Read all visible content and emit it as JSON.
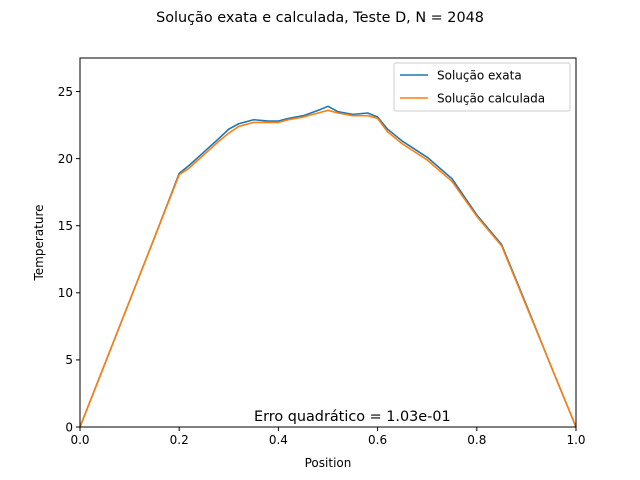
{
  "chart_data": {
    "type": "line",
    "title": "Solução exata e calculada, Teste D, N = 2048",
    "xlabel": "Position",
    "ylabel": "Temperature",
    "xlim": [
      0.0,
      1.0
    ],
    "ylim": [
      0,
      27.5
    ],
    "xticks": [
      0.0,
      0.2,
      0.4,
      0.6,
      0.8,
      1.0
    ],
    "xtick_labels": [
      "0.0",
      "0.2",
      "0.4",
      "0.6",
      "0.8",
      "1.0"
    ],
    "yticks": [
      0,
      5,
      10,
      15,
      20,
      25
    ],
    "ytick_labels": [
      "0",
      "5",
      "10",
      "15",
      "20",
      "25"
    ],
    "grid": false,
    "legend_position": "top-right",
    "annotation": "Erro quadrático = 1.03e-01",
    "series": [
      {
        "name": "Solução exata",
        "color": "#1f77b4",
        "x": [
          0.0,
          0.05,
          0.1,
          0.15,
          0.2,
          0.22,
          0.25,
          0.28,
          0.3,
          0.32,
          0.35,
          0.38,
          0.4,
          0.42,
          0.45,
          0.48,
          0.5,
          0.52,
          0.55,
          0.58,
          0.6,
          0.62,
          0.65,
          0.7,
          0.75,
          0.8,
          0.85,
          0.9,
          0.95,
          1.0
        ],
        "y": [
          0.0,
          4.7,
          9.4,
          14.1,
          18.9,
          19.5,
          20.5,
          21.5,
          22.2,
          22.6,
          22.9,
          22.8,
          22.8,
          23.0,
          23.2,
          23.6,
          23.9,
          23.5,
          23.3,
          23.4,
          23.1,
          22.2,
          21.3,
          20.1,
          18.5,
          15.8,
          13.6,
          9.1,
          4.5,
          0.0
        ]
      },
      {
        "name": "Solução calculada",
        "color": "#ff7f0e",
        "x": [
          0.0,
          0.05,
          0.1,
          0.15,
          0.2,
          0.22,
          0.25,
          0.28,
          0.3,
          0.32,
          0.35,
          0.38,
          0.4,
          0.42,
          0.45,
          0.48,
          0.5,
          0.52,
          0.55,
          0.58,
          0.6,
          0.62,
          0.65,
          0.7,
          0.75,
          0.8,
          0.85,
          0.9,
          0.95,
          1.0
        ],
        "y": [
          0.0,
          4.7,
          9.4,
          14.1,
          18.8,
          19.3,
          20.3,
          21.3,
          21.9,
          22.4,
          22.7,
          22.7,
          22.7,
          22.9,
          23.1,
          23.4,
          23.6,
          23.4,
          23.2,
          23.2,
          23.0,
          22.0,
          21.1,
          19.9,
          18.3,
          15.7,
          13.5,
          9.0,
          4.5,
          0.0
        ]
      }
    ]
  }
}
